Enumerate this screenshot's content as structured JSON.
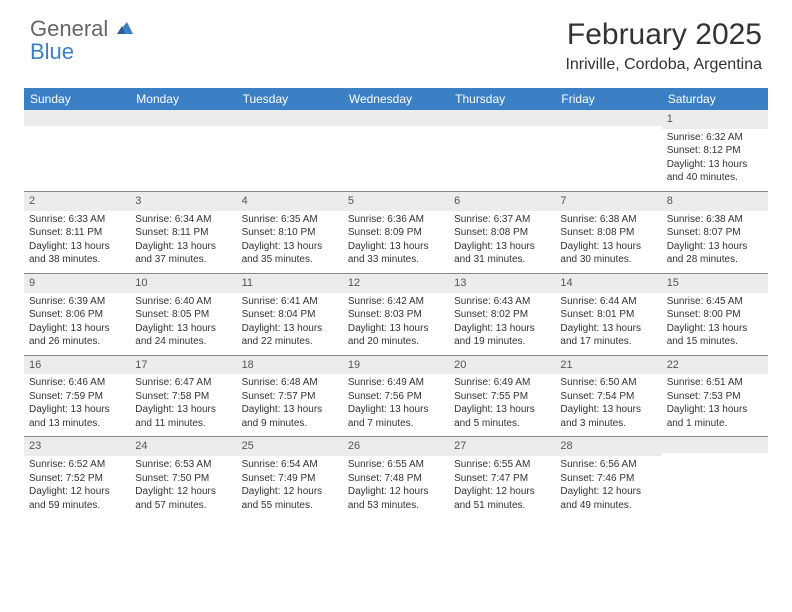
{
  "brand": {
    "part1": "General",
    "part2": "Blue"
  },
  "title": "February 2025",
  "location": "Inriville, Cordoba, Argentina",
  "header_bg": "#3b7fc4",
  "header_fg": "#ffffff",
  "daynum_bg": "#ececec",
  "border_color": "#888888",
  "text_color": "#333333",
  "days": [
    "Sunday",
    "Monday",
    "Tuesday",
    "Wednesday",
    "Thursday",
    "Friday",
    "Saturday"
  ],
  "weeks": [
    [
      {
        "n": "",
        "lines": []
      },
      {
        "n": "",
        "lines": []
      },
      {
        "n": "",
        "lines": []
      },
      {
        "n": "",
        "lines": []
      },
      {
        "n": "",
        "lines": []
      },
      {
        "n": "",
        "lines": []
      },
      {
        "n": "1",
        "lines": [
          "Sunrise: 6:32 AM",
          "Sunset: 8:12 PM",
          "Daylight: 13 hours and 40 minutes."
        ]
      }
    ],
    [
      {
        "n": "2",
        "lines": [
          "Sunrise: 6:33 AM",
          "Sunset: 8:11 PM",
          "Daylight: 13 hours and 38 minutes."
        ]
      },
      {
        "n": "3",
        "lines": [
          "Sunrise: 6:34 AM",
          "Sunset: 8:11 PM",
          "Daylight: 13 hours and 37 minutes."
        ]
      },
      {
        "n": "4",
        "lines": [
          "Sunrise: 6:35 AM",
          "Sunset: 8:10 PM",
          "Daylight: 13 hours and 35 minutes."
        ]
      },
      {
        "n": "5",
        "lines": [
          "Sunrise: 6:36 AM",
          "Sunset: 8:09 PM",
          "Daylight: 13 hours and 33 minutes."
        ]
      },
      {
        "n": "6",
        "lines": [
          "Sunrise: 6:37 AM",
          "Sunset: 8:08 PM",
          "Daylight: 13 hours and 31 minutes."
        ]
      },
      {
        "n": "7",
        "lines": [
          "Sunrise: 6:38 AM",
          "Sunset: 8:08 PM",
          "Daylight: 13 hours and 30 minutes."
        ]
      },
      {
        "n": "8",
        "lines": [
          "Sunrise: 6:38 AM",
          "Sunset: 8:07 PM",
          "Daylight: 13 hours and 28 minutes."
        ]
      }
    ],
    [
      {
        "n": "9",
        "lines": [
          "Sunrise: 6:39 AM",
          "Sunset: 8:06 PM",
          "Daylight: 13 hours and 26 minutes."
        ]
      },
      {
        "n": "10",
        "lines": [
          "Sunrise: 6:40 AM",
          "Sunset: 8:05 PM",
          "Daylight: 13 hours and 24 minutes."
        ]
      },
      {
        "n": "11",
        "lines": [
          "Sunrise: 6:41 AM",
          "Sunset: 8:04 PM",
          "Daylight: 13 hours and 22 minutes."
        ]
      },
      {
        "n": "12",
        "lines": [
          "Sunrise: 6:42 AM",
          "Sunset: 8:03 PM",
          "Daylight: 13 hours and 20 minutes."
        ]
      },
      {
        "n": "13",
        "lines": [
          "Sunrise: 6:43 AM",
          "Sunset: 8:02 PM",
          "Daylight: 13 hours and 19 minutes."
        ]
      },
      {
        "n": "14",
        "lines": [
          "Sunrise: 6:44 AM",
          "Sunset: 8:01 PM",
          "Daylight: 13 hours and 17 minutes."
        ]
      },
      {
        "n": "15",
        "lines": [
          "Sunrise: 6:45 AM",
          "Sunset: 8:00 PM",
          "Daylight: 13 hours and 15 minutes."
        ]
      }
    ],
    [
      {
        "n": "16",
        "lines": [
          "Sunrise: 6:46 AM",
          "Sunset: 7:59 PM",
          "Daylight: 13 hours and 13 minutes."
        ]
      },
      {
        "n": "17",
        "lines": [
          "Sunrise: 6:47 AM",
          "Sunset: 7:58 PM",
          "Daylight: 13 hours and 11 minutes."
        ]
      },
      {
        "n": "18",
        "lines": [
          "Sunrise: 6:48 AM",
          "Sunset: 7:57 PM",
          "Daylight: 13 hours and 9 minutes."
        ]
      },
      {
        "n": "19",
        "lines": [
          "Sunrise: 6:49 AM",
          "Sunset: 7:56 PM",
          "Daylight: 13 hours and 7 minutes."
        ]
      },
      {
        "n": "20",
        "lines": [
          "Sunrise: 6:49 AM",
          "Sunset: 7:55 PM",
          "Daylight: 13 hours and 5 minutes."
        ]
      },
      {
        "n": "21",
        "lines": [
          "Sunrise: 6:50 AM",
          "Sunset: 7:54 PM",
          "Daylight: 13 hours and 3 minutes."
        ]
      },
      {
        "n": "22",
        "lines": [
          "Sunrise: 6:51 AM",
          "Sunset: 7:53 PM",
          "Daylight: 13 hours and 1 minute."
        ]
      }
    ],
    [
      {
        "n": "23",
        "lines": [
          "Sunrise: 6:52 AM",
          "Sunset: 7:52 PM",
          "Daylight: 12 hours and 59 minutes."
        ]
      },
      {
        "n": "24",
        "lines": [
          "Sunrise: 6:53 AM",
          "Sunset: 7:50 PM",
          "Daylight: 12 hours and 57 minutes."
        ]
      },
      {
        "n": "25",
        "lines": [
          "Sunrise: 6:54 AM",
          "Sunset: 7:49 PM",
          "Daylight: 12 hours and 55 minutes."
        ]
      },
      {
        "n": "26",
        "lines": [
          "Sunrise: 6:55 AM",
          "Sunset: 7:48 PM",
          "Daylight: 12 hours and 53 minutes."
        ]
      },
      {
        "n": "27",
        "lines": [
          "Sunrise: 6:55 AM",
          "Sunset: 7:47 PM",
          "Daylight: 12 hours and 51 minutes."
        ]
      },
      {
        "n": "28",
        "lines": [
          "Sunrise: 6:56 AM",
          "Sunset: 7:46 PM",
          "Daylight: 12 hours and 49 minutes."
        ]
      },
      {
        "n": "",
        "lines": []
      }
    ]
  ]
}
